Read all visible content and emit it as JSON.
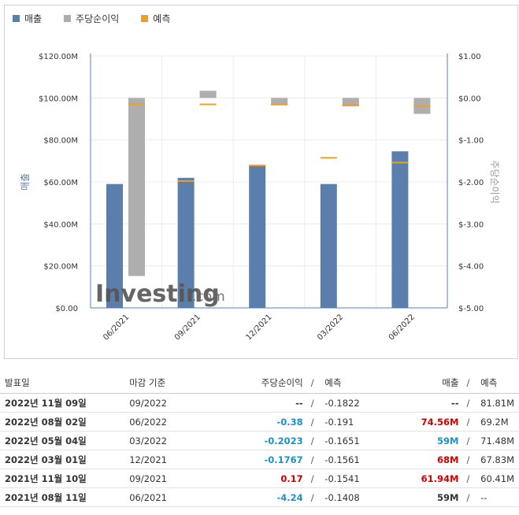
{
  "legend": {
    "revenue": "매출",
    "eps": "주당순이익",
    "forecast": "예측",
    "colors": {
      "revenue": "#5b7fad",
      "eps": "#aeaeae",
      "forecast": "#f0a020"
    }
  },
  "watermark": {
    "brand": "Investing",
    "suffix": ".com"
  },
  "chart_data": {
    "type": "bar",
    "categories": [
      "06/2021",
      "09/2021",
      "12/2021",
      "03/2022",
      "06/2022"
    ],
    "ylabel": "매출",
    "y2label": "주당순이익",
    "ylim": [
      0,
      120
    ],
    "y2lim": [
      -5,
      1
    ],
    "y_ticks": [
      "$0.00",
      "$20.00M",
      "$40.00M",
      "$60.00M",
      "$80.00M",
      "$100.00M",
      "$120.00M"
    ],
    "y2_ticks": [
      "$-5.00",
      "$-4.00",
      "$-3.00",
      "$-2.00",
      "$-1.00",
      "$0.00",
      "$1.00"
    ],
    "series": [
      {
        "name": "매출",
        "axis": "left",
        "values": [
          59,
          61.94,
          68,
          59,
          74.56
        ]
      },
      {
        "name": "매출 예측",
        "axis": "left",
        "values": [
          null,
          60.41,
          67.83,
          71.48,
          69.2
        ]
      },
      {
        "name": "주당순이익",
        "axis": "right",
        "values": [
          -4.24,
          0.17,
          -0.1767,
          -0.2023,
          -0.38
        ]
      },
      {
        "name": "주당순이익 예측",
        "axis": "right",
        "values": [
          -0.1408,
          -0.1541,
          -0.1561,
          -0.1651,
          -0.191
        ]
      }
    ]
  },
  "table": {
    "headers": {
      "date": "발표일",
      "period": "마감 기준",
      "eps": "주당순이익",
      "eps_fc": "예측",
      "rev": "매출",
      "rev_fc": "예측",
      "sep": "/"
    },
    "rows": [
      {
        "date": "2022년 11월 09일",
        "period": "09/2022",
        "eps": "--",
        "eps_fc": "-0.1822",
        "rev": "--",
        "rev_fc": "81.81M",
        "eps_cls": "neu",
        "rev_cls": "neu"
      },
      {
        "date": "2022년 08월 02일",
        "period": "06/2022",
        "eps": "-0.38",
        "eps_fc": "-0.191",
        "rev": "74.56M",
        "rev_fc": "69.2M",
        "eps_cls": "neg",
        "rev_cls": "pos"
      },
      {
        "date": "2022년 05월 04일",
        "period": "03/2022",
        "eps": "-0.2023",
        "eps_fc": "-0.1651",
        "rev": "59M",
        "rev_fc": "71.48M",
        "eps_cls": "neg",
        "rev_cls": "neg"
      },
      {
        "date": "2022년 03월 01일",
        "period": "12/2021",
        "eps": "-0.1767",
        "eps_fc": "-0.1561",
        "rev": "68M",
        "rev_fc": "67.83M",
        "eps_cls": "neg",
        "rev_cls": "pos"
      },
      {
        "date": "2021년 11월 10일",
        "period": "09/2021",
        "eps": "0.17",
        "eps_fc": "-0.1541",
        "rev": "61.94M",
        "rev_fc": "60.41M",
        "eps_cls": "pos",
        "rev_cls": "pos"
      },
      {
        "date": "2021년 08월 11일",
        "period": "06/2021",
        "eps": "-4.24",
        "eps_fc": "-0.1408",
        "rev": "59M",
        "rev_fc": "--",
        "eps_cls": "neg",
        "rev_cls": "neu"
      }
    ]
  }
}
